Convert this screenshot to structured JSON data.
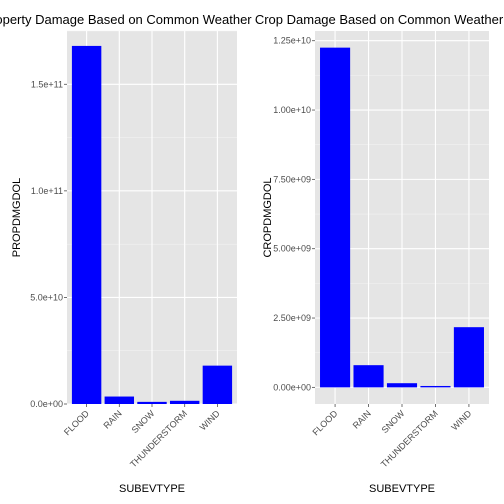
{
  "chart_data": [
    {
      "type": "bar",
      "title": "Property Damage Based on Common Weather",
      "xlabel": "SUBEVTYPE",
      "ylabel": "PROPDMGDOL",
      "categories": [
        "FLOOD",
        "RAIN",
        "SNOW",
        "THUNDERSTORM",
        "WIND"
      ],
      "values": [
        168000000000,
        3500000000,
        1000000000,
        1500000000,
        18000000000
      ],
      "ylim": [
        0,
        175000000000
      ],
      "yticks": [
        0,
        50000000000,
        100000000000,
        150000000000
      ],
      "ytick_labels": [
        "0.0e+00",
        "5.0e+10",
        "1.0e+11",
        "1.5e+11"
      ],
      "grid": true,
      "bar_color": "#0000ff",
      "panel_color": "#e5e5e5",
      "grid_color": "#ffffff"
    },
    {
      "type": "bar",
      "title": "Crop Damage Based on Common Weather",
      "xlabel": "SUBEVTYPE",
      "ylabel": "CROPDMGDOL",
      "categories": [
        "FLOOD",
        "RAIN",
        "SNOW",
        "THUNDERSTORM",
        "WIND"
      ],
      "values": [
        12250000000,
        800000000,
        150000000,
        50000000,
        2170000000
      ],
      "ylim": [
        -600000000,
        12850000000
      ],
      "yticks": [
        0,
        2500000000,
        5000000000,
        7500000000,
        10000000000,
        12500000000
      ],
      "ytick_labels": [
        "0.00e+00",
        "2.50e+09",
        "5.00e+09",
        "7.50e+09",
        "1.00e+10",
        "1.25e+10"
      ],
      "grid": true,
      "bar_color": "#0000ff",
      "panel_color": "#e5e5e5",
      "grid_color": "#ffffff"
    }
  ]
}
